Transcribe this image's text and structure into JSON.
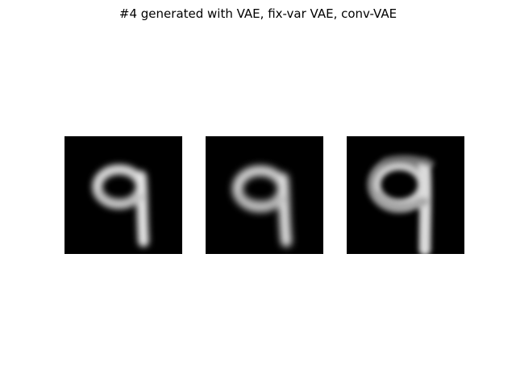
{
  "figure": {
    "title": "#4 generated with VAE, fix-var VAE, conv-VAE"
  },
  "panels": [
    {
      "content": "generated handwritten digit 9",
      "model": "VAE"
    },
    {
      "content": "generated handwritten digit 9",
      "model": "fix-var VAE"
    },
    {
      "content": "generated handwritten digit 9",
      "model": "conv-VAE"
    }
  ],
  "colors": {
    "background": "#ffffff",
    "image_background": "#000000",
    "stroke": "#e8e8e8"
  }
}
